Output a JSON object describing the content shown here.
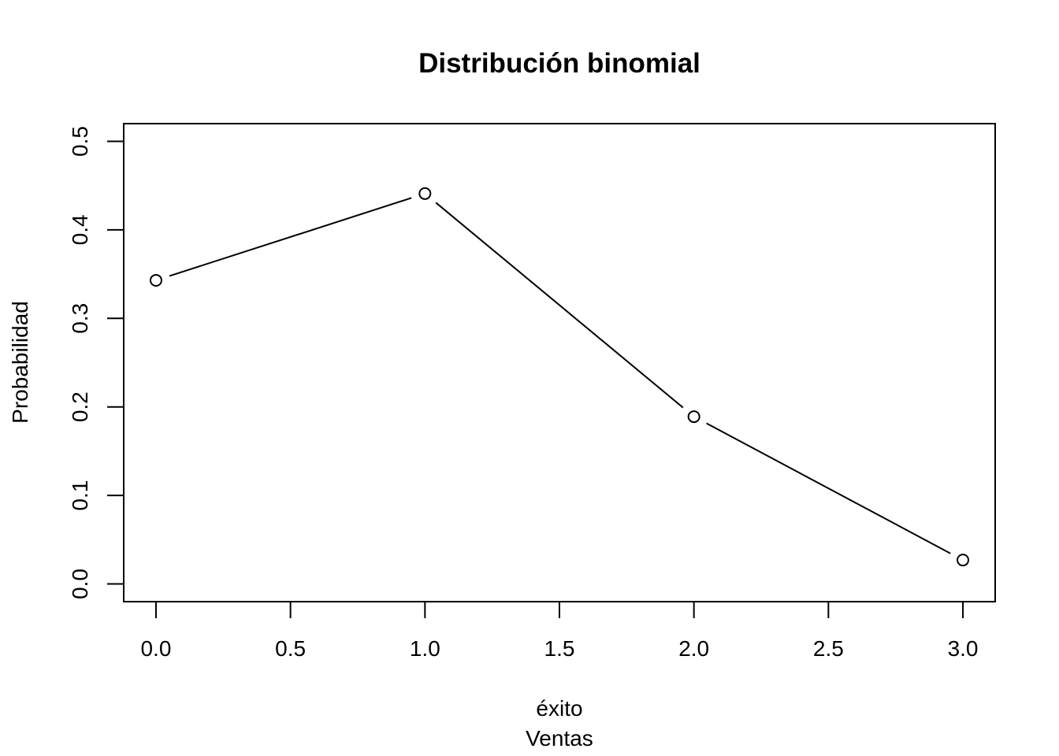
{
  "chart_data": {
    "type": "line",
    "title": "Distribución binomial",
    "xlabel": "éxito",
    "xlabel2": "Ventas",
    "ylabel": "Probabilidad",
    "x": [
      0,
      1,
      2,
      3
    ],
    "series": [
      {
        "values": [
          0.343,
          0.441,
          0.189,
          0.027
        ]
      }
    ],
    "xlim": [
      -0.12,
      3.12
    ],
    "ylim": [
      -0.02,
      0.52
    ],
    "xticks": [
      "0.0",
      "0.5",
      "1.0",
      "1.5",
      "2.0",
      "2.5",
      "3.0"
    ],
    "yticks": [
      "0.0",
      "0.1",
      "0.2",
      "0.3",
      "0.4",
      "0.5"
    ],
    "grid": false,
    "marker": "open-circle"
  }
}
